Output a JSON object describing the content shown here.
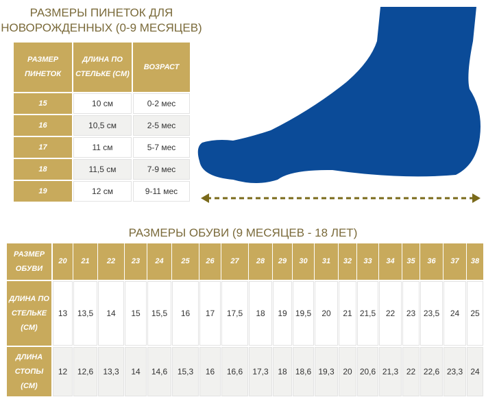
{
  "section1": {
    "title_lines": [
      "РАЗМЕРЫ ПИНЕТОК ДЛЯ",
      "НОВОРОЖДЕННЫХ (0-9 МЕСЯЦЕВ)"
    ],
    "table": {
      "header": [
        "РАЗМЕР ПИНЕТОК",
        "ДЛИНА ПО СТЕЛЬКЕ (СМ)",
        "ВОЗРАСТ"
      ],
      "rows": [
        [
          "15",
          "10 см",
          "0-2 мес"
        ],
        [
          "16",
          "10,5 см",
          "2-5 мес"
        ],
        [
          "17",
          "11 см",
          "5-7 мес"
        ],
        [
          "18",
          "11,5 см",
          "7-9 мес"
        ],
        [
          "19",
          "12 см",
          "9-11 мес"
        ]
      ]
    }
  },
  "section2": {
    "title": "РАЗМЕРЫ ОБУВИ (9 МЕСЯЦЕВ - 18 ЛЕТ)",
    "table": {
      "rows": [
        [
          "РАЗМЕР ОБУВИ",
          "20",
          "21",
          "22",
          "23",
          "24",
          "25",
          "26",
          "27",
          "28",
          "29",
          "30",
          "31",
          "32",
          "33",
          "34",
          "35",
          "36",
          "37",
          "38"
        ],
        [
          "ДЛИНА ПО СТЕЛЬКЕ (СМ)",
          "13",
          "13,5",
          "14",
          "15",
          "15,5",
          "16",
          "17",
          "17,5",
          "18",
          "19",
          "19,5",
          "20",
          "21",
          "21,5",
          "22",
          "23",
          "23,5",
          "24",
          "25"
        ],
        [
          "ДЛИНА СТОПЫ (СМ)",
          "12",
          "12,6",
          "13,3",
          "14",
          "14,6",
          "15,3",
          "16",
          "16,6",
          "17,3",
          "18",
          "18,6",
          "19,3",
          "20",
          "20,6",
          "21,3",
          "22",
          "22,6",
          "23,3",
          "24"
        ]
      ]
    }
  }
}
